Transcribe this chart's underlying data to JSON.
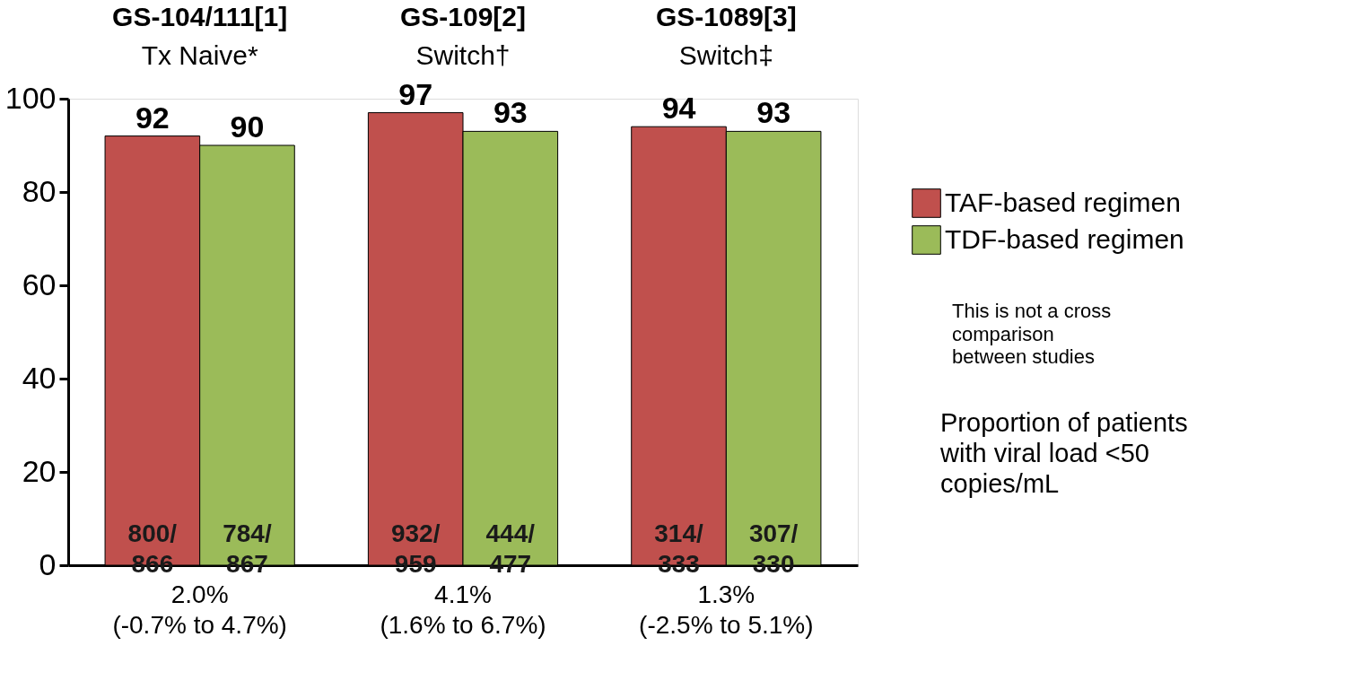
{
  "chart_data": {
    "type": "bar",
    "categories": [
      "GS-104/111[1]\nTx Naive*",
      "GS-109[2]\nSwitch†",
      "GS-1089[3]\nSwitch‡"
    ],
    "series": [
      {
        "name": "TAF-based regimen",
        "color": "#c0504d",
        "values": [
          92,
          97,
          94
        ]
      },
      {
        "name": "TDF-based regimen",
        "color": "#9bbb59",
        "values": [
          90,
          93,
          93
        ]
      }
    ],
    "ylim": [
      0,
      100
    ],
    "yticks": [
      0,
      20,
      40,
      60,
      80,
      100
    ],
    "data_labels": true,
    "grid": false,
    "legend": "right",
    "annotations": [
      "800/\n866",
      "784/\n867",
      "932/\n959",
      "444/\n477",
      "314/\n333",
      "307/\n330",
      "2.0%\n(-0.7% to 4.7%)",
      "4.1%\n(1.6% to 6.7%)",
      "1.3%\n(-2.5% to 5.1%)",
      "This is not a cross\ncomparison\nbetween studies",
      "Proportion of patients\nwith viral load <50\ncopies/mL"
    ]
  }
}
